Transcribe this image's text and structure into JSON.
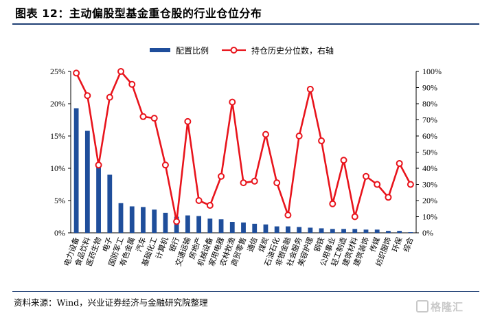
{
  "header": {
    "title": "图表 12：主动偏股型基金重仓股的行业仓位分布"
  },
  "footer": {
    "source": "资料来源：Wind，兴业证券经济与金融研究院整理"
  },
  "watermark": {
    "text": "格隆汇"
  },
  "colors": {
    "bar": "#1f4e9b",
    "line": "#e8141c",
    "axis": "#000000",
    "rule": "#1f3f74"
  },
  "chart_data": {
    "type": "bar",
    "categories": [
      "电力设备",
      "食品饮料",
      "医药生物",
      "电子",
      "国防军工",
      "有色金属",
      "汽车",
      "基础化工",
      "计算机",
      "银行",
      "交通运输",
      "房地产",
      "机械设备",
      "家用电器",
      "农林牧渔",
      "商贸零售",
      "通信",
      "煤炭",
      "石油石化",
      "非银金融",
      "社会服务",
      "美容护理",
      "钢铁",
      "公用事业",
      "轻工制造",
      "建筑材料",
      "建筑装饰",
      "传媒",
      "纺织服饰",
      "环保",
      "综合"
    ],
    "series": [
      {
        "name": "配置比例",
        "axis": "left",
        "type": "bar",
        "values": [
          19.3,
          15.8,
          10.2,
          9.0,
          4.6,
          4.1,
          4.0,
          3.6,
          3.1,
          2.5,
          2.7,
          2.6,
          2.2,
          2.1,
          1.7,
          1.6,
          1.4,
          1.3,
          1.0,
          1.0,
          0.9,
          0.8,
          0.7,
          0.6,
          0.6,
          0.6,
          0.5,
          0.5,
          0.3,
          0.3,
          0.1
        ]
      },
      {
        "name": "持仓历史分位数，右轴",
        "axis": "right",
        "type": "line",
        "values": [
          99,
          85,
          42,
          84,
          100,
          92,
          72,
          71,
          42,
          7,
          69,
          20,
          17,
          35,
          81,
          31,
          32,
          61,
          31,
          11,
          60,
          89,
          57,
          18,
          45,
          10,
          35,
          30,
          22,
          43,
          30
        ]
      }
    ],
    "left_axis": {
      "ylim": [
        0,
        25
      ],
      "ticks": [
        0,
        5,
        10,
        15,
        20,
        25
      ],
      "tick_labels": [
        "0%",
        "5%",
        "10%",
        "15%",
        "20%",
        "25%"
      ]
    },
    "right_axis": {
      "ylim": [
        0,
        100
      ],
      "ticks": [
        0,
        10,
        20,
        30,
        40,
        50,
        60,
        70,
        80,
        90,
        100
      ],
      "tick_labels": [
        "0%",
        "10%",
        "20%",
        "30%",
        "40%",
        "50%",
        "60%",
        "70%",
        "80%",
        "90%",
        "100%"
      ]
    },
    "grid": false,
    "legend_position": "top-center"
  }
}
